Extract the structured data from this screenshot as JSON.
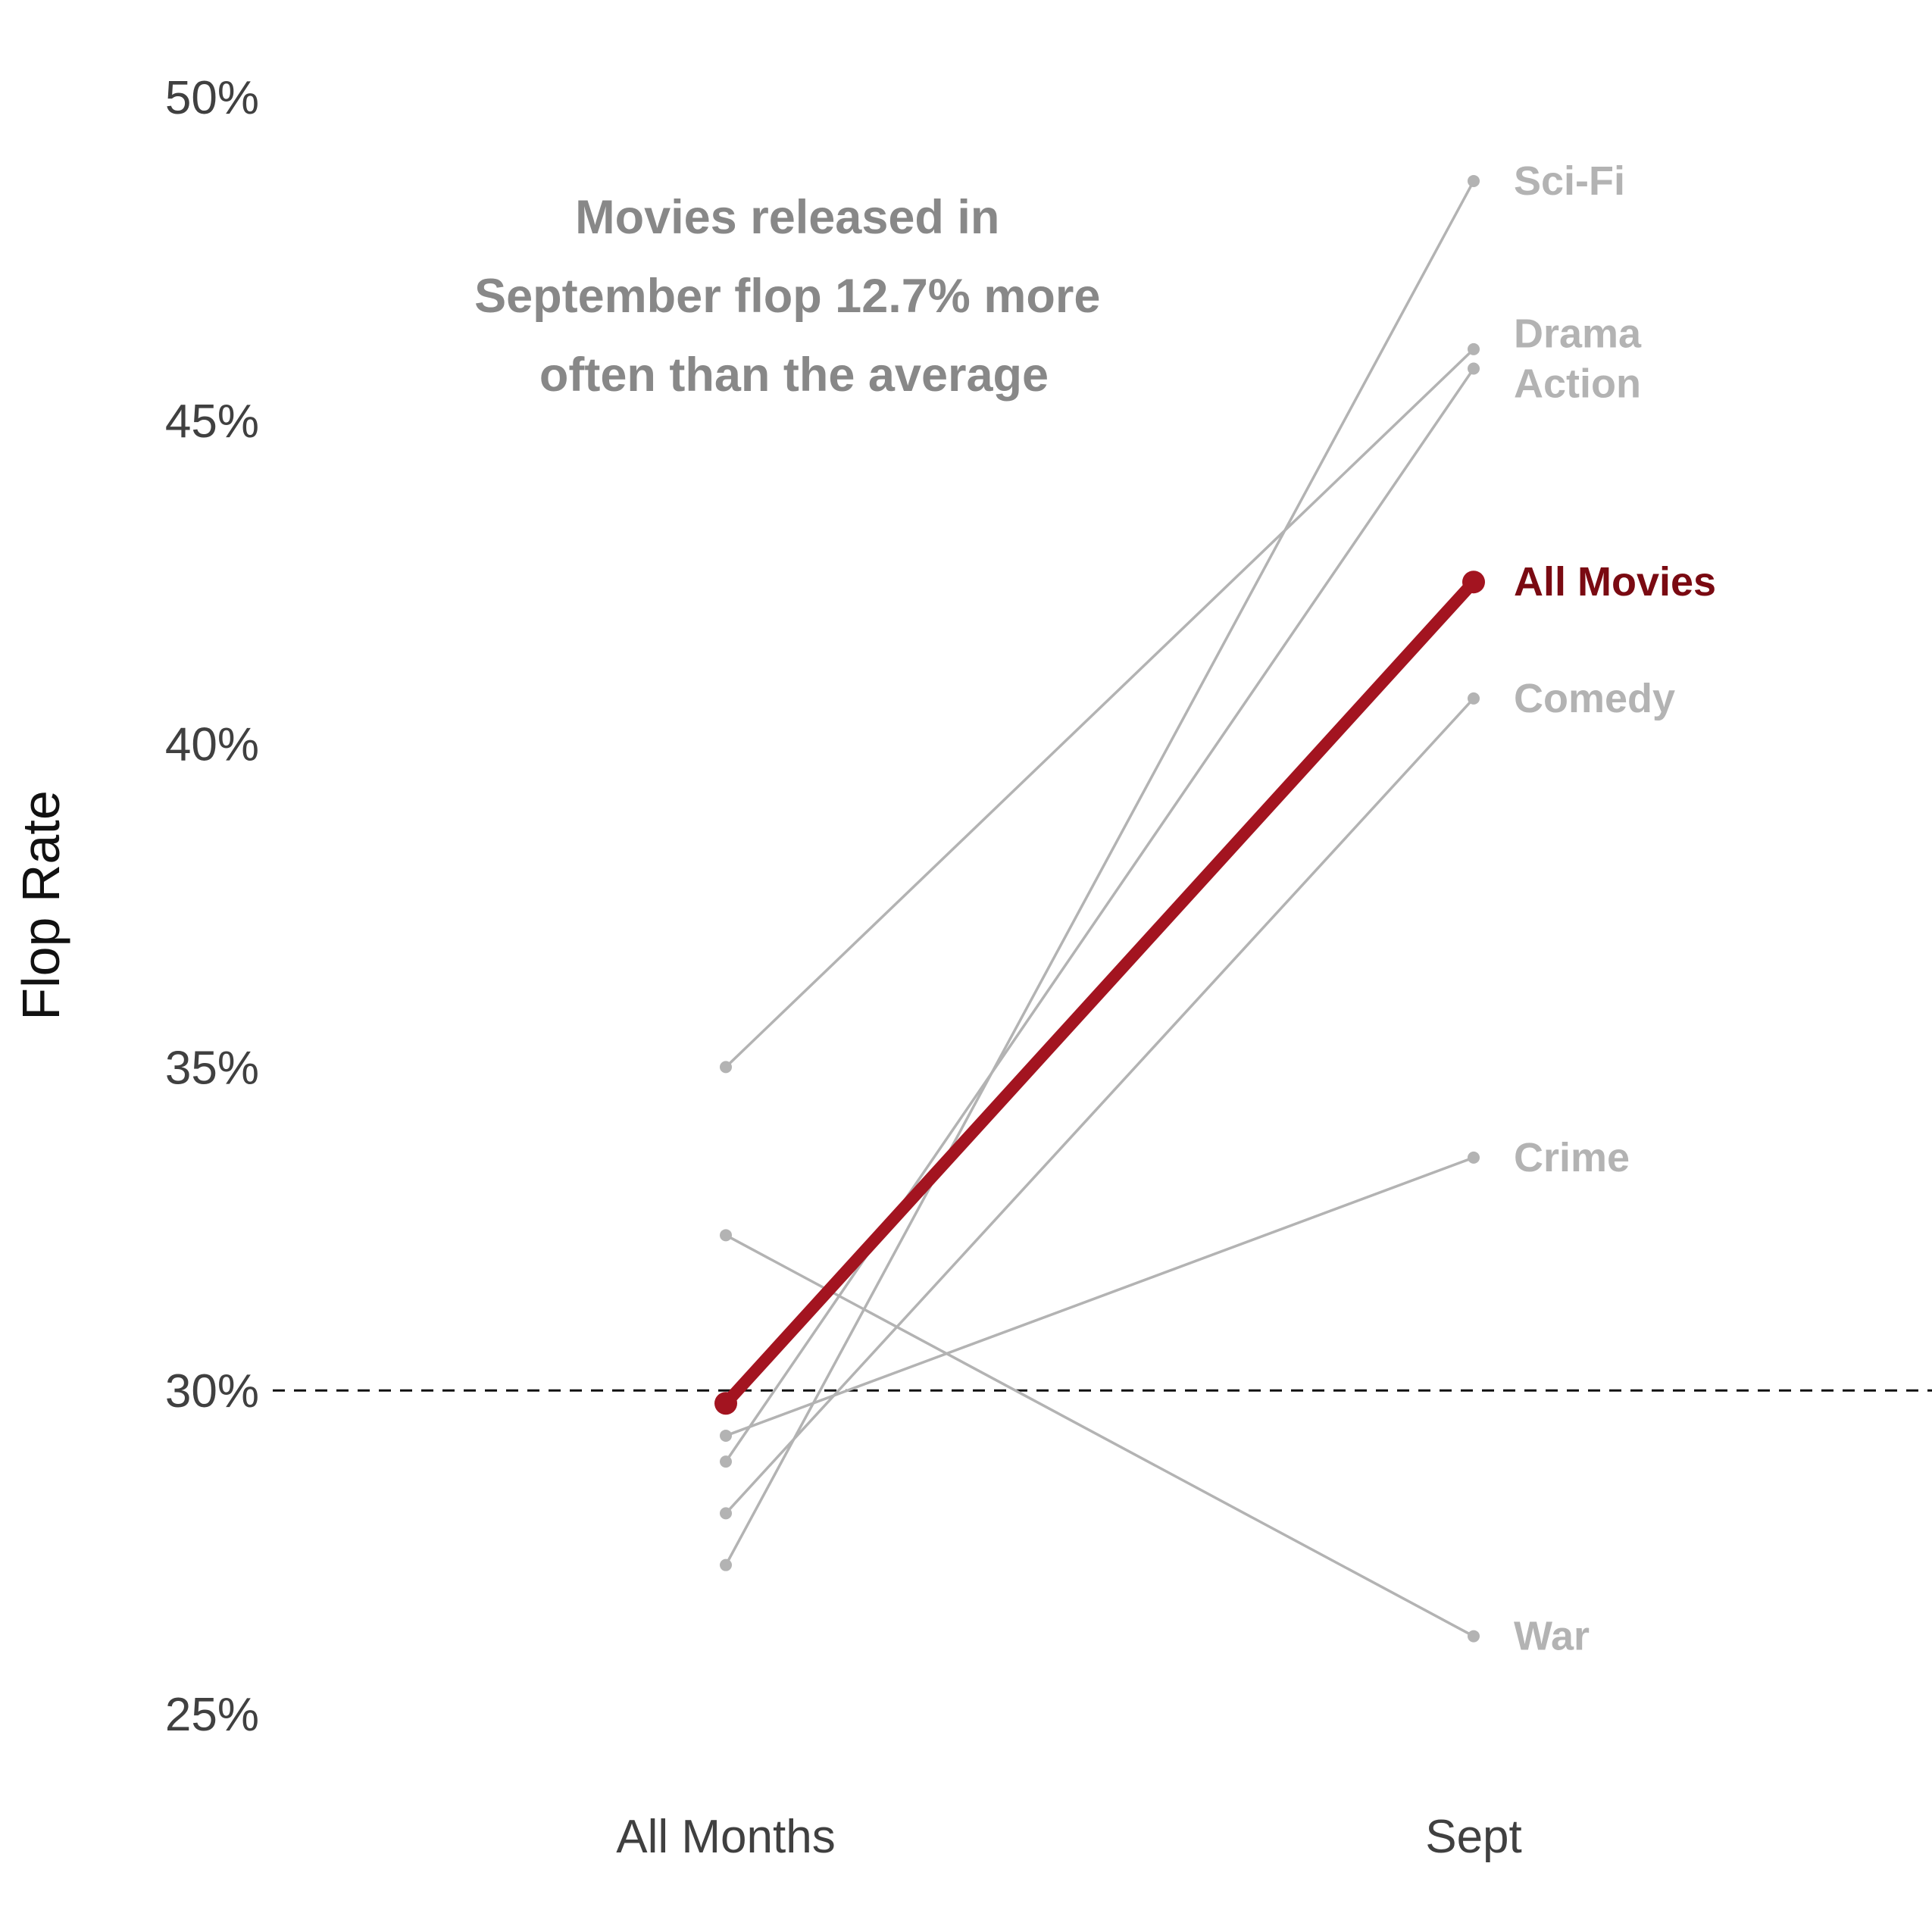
{
  "chart_data": {
    "type": "line",
    "title": "",
    "xlabel": "",
    "ylabel": "Flop Rate",
    "x": [
      "All Months",
      "Sept"
    ],
    "yticks": [
      "25%",
      "30%",
      "35%",
      "40%",
      "45%",
      "50%"
    ],
    "ylim": [
      25,
      50
    ],
    "grid": false,
    "reference_line": {
      "y": 30,
      "style": "dashed"
    },
    "annotation": [
      "Movies released in",
      "September flop 12.7% more",
      "often than the average"
    ],
    "highlight_color": "#a31420",
    "highlight_label_color": "#7a0a12",
    "muted_color": "#b3b3b3",
    "series": [
      {
        "name": "Sci-Fi",
        "values": [
          27.3,
          48.7
        ]
      },
      {
        "name": "Drama",
        "values": [
          35.0,
          46.1
        ]
      },
      {
        "name": "Action",
        "values": [
          28.9,
          45.8
        ]
      },
      {
        "name": "All Movies",
        "values": [
          29.8,
          42.5
        ],
        "highlight": true
      },
      {
        "name": "Comedy",
        "values": [
          28.1,
          40.7
        ]
      },
      {
        "name": "Crime",
        "values": [
          29.3,
          33.6
        ]
      },
      {
        "name": "War",
        "values": [
          32.4,
          26.2
        ]
      }
    ]
  }
}
